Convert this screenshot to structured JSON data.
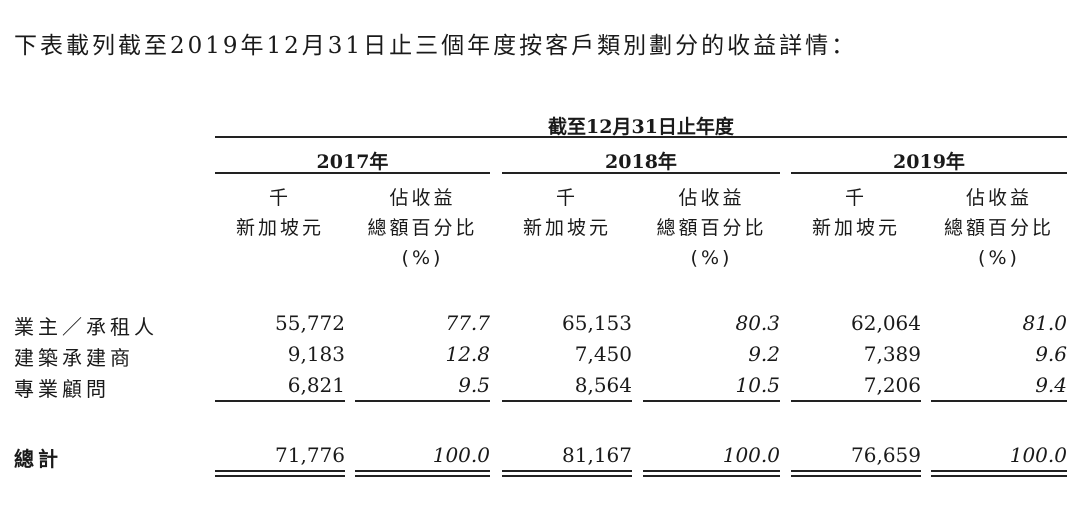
{
  "intro": "下表載列截至2019年12月31日止三個年度按客戶類別劃分的收益詳情：",
  "period_header": "截至12月31日止年度",
  "years": [
    "2017年",
    "2018年",
    "2019年"
  ],
  "col_headers": {
    "amount": [
      "千",
      "新加坡元"
    ],
    "pct": [
      "佔收益",
      "總額百分比",
      "(%)"
    ]
  },
  "rows": [
    {
      "label": "業主／承租人",
      "values": [
        "55,772",
        "77.7",
        "65,153",
        "80.3",
        "62,064",
        "81.0"
      ]
    },
    {
      "label": "建築承建商",
      "values": [
        "9,183",
        "12.8",
        "7,450",
        "9.2",
        "7,389",
        "9.6"
      ]
    },
    {
      "label": "專業顧問",
      "values": [
        "6,821",
        "9.5",
        "8,564",
        "10.5",
        "7,206",
        "9.4"
      ]
    }
  ],
  "total": {
    "label": "總計",
    "values": [
      "71,776",
      "100.0",
      "81,167",
      "100.0",
      "76,659",
      "100.0"
    ]
  }
}
